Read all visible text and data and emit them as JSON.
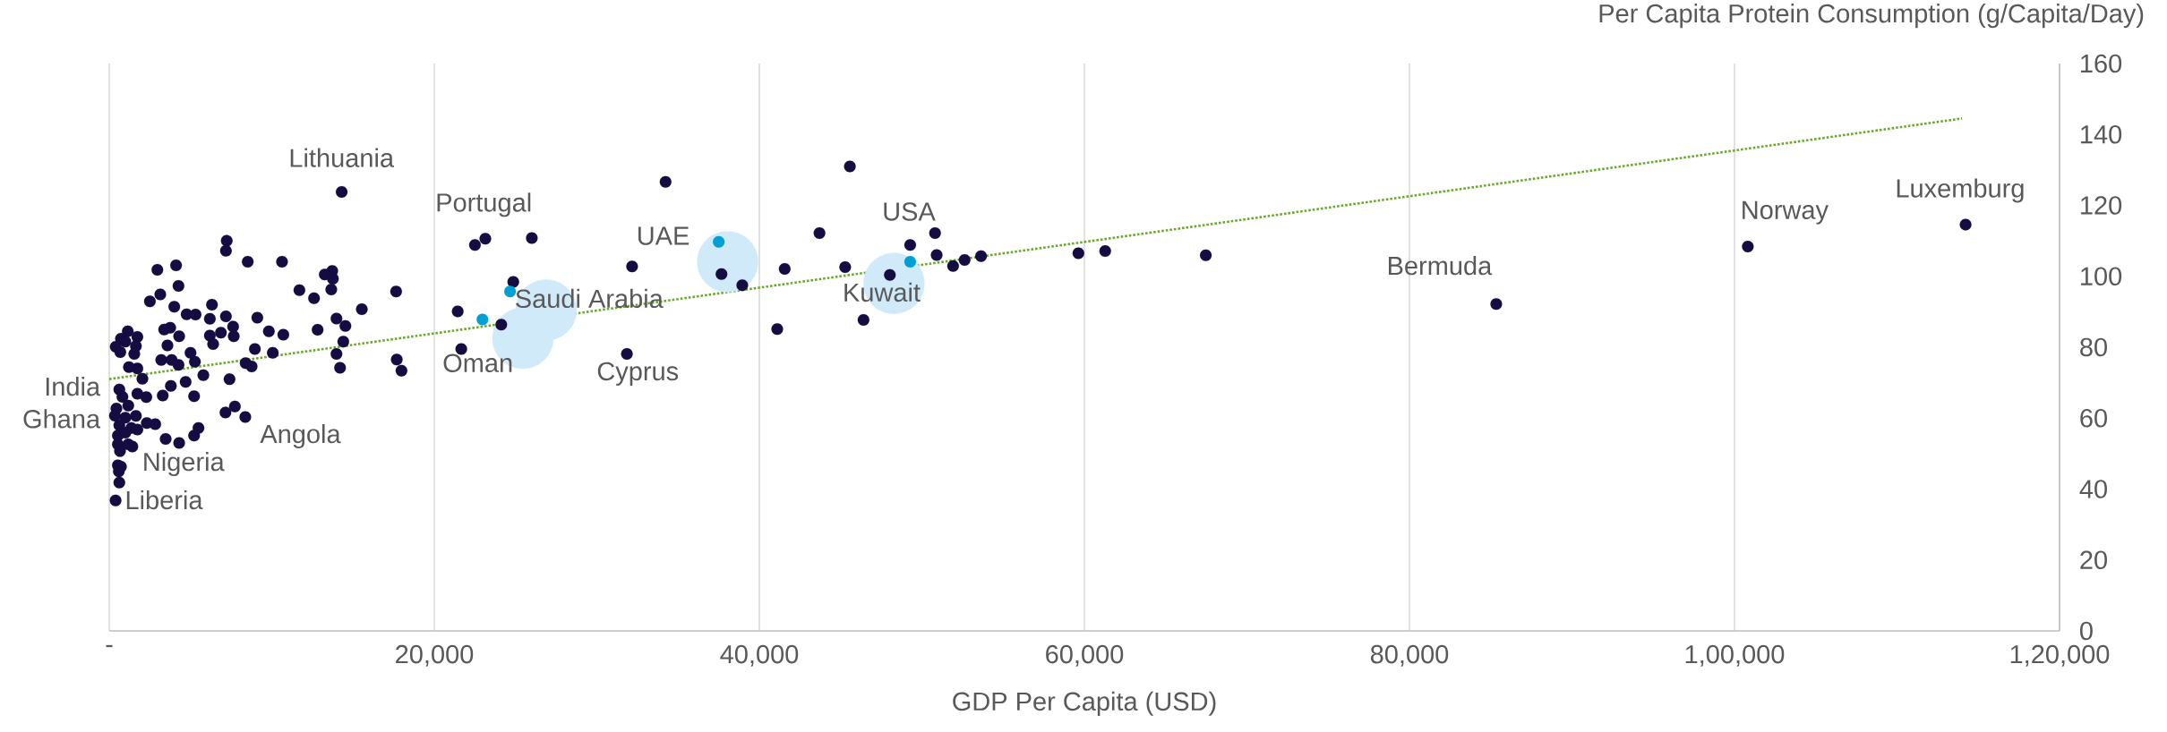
{
  "chart_data": {
    "type": "scatter",
    "xlabel": "GDP Per Capita (USD)",
    "ylabel": "Per Capita Protein Consumption (g/Capita/Day)",
    "xlim": [
      0,
      120000
    ],
    "ylim": [
      0,
      160
    ],
    "xticks": [
      {
        "value": 0,
        "label": "-"
      },
      {
        "value": 20000,
        "label": "20,000"
      },
      {
        "value": 40000,
        "label": "40,000"
      },
      {
        "value": 60000,
        "label": "60,000"
      },
      {
        "value": 80000,
        "label": "80,000"
      },
      {
        "value": 100000,
        "label": "1,00,000"
      },
      {
        "value": 120000,
        "label": "1,20,000"
      }
    ],
    "yticks": [
      0,
      20,
      40,
      60,
      80,
      100,
      120,
      140,
      160
    ],
    "grid": "x",
    "series": [
      {
        "type": "bubble",
        "color": "#d0eaf9",
        "x": [
          26880,
          25450,
          38050,
          48280
        ],
        "values": [
          90.5,
          82.5,
          104.1,
          98.0
        ],
        "sizes": [
          1,
          1,
          1,
          1
        ]
      },
      {
        "color": "#150d42",
        "x": [
          14300,
          7230,
          7180,
          8520,
          10630,
          2960,
          4110,
          4260,
          3140,
          2500,
          4000,
          4760,
          5310,
          6320,
          6190,
          7180,
          7620,
          6870,
          7660,
          6190,
          6390,
          9110,
          9820,
          10710,
          8960,
          10060,
          11700,
          12600,
          13260,
          13720,
          13760,
          13660,
          15540,
          17650,
          13980,
          14530,
          12820,
          14400,
          13980,
          14200,
          17690,
          17980,
          8390,
          8760,
          7400,
          5790,
          5270,
          5000,
          4300,
          3580,
          3380,
          3750,
          3200,
          3840,
          4260,
          4700,
          3790,
          3290,
          5220,
          7150,
          7730,
          8370,
          5220,
          5490,
          4300,
          3470,
          2830,
          2310,
          2280,
          2040,
          1730,
          1210,
          1140,
          1730,
          720,
          400,
          680,
          1540,
          1640,
          990,
          620,
          810,
          1730,
          440,
          1170,
          350,
          990,
          1640,
          620,
          1360,
          1730,
          530,
          990,
          530,
          1420,
          660,
          530,
          720,
          590,
          620,
          390,
          1170,
          34230,
          45570,
          22500,
          23140,
          26000,
          32170,
          24860,
          21440,
          24120,
          21660,
          31850,
          37670,
          38950,
          43700,
          41560,
          41100,
          45280,
          46410,
          48030,
          49280,
          50810,
          50910,
          51920,
          52630,
          53640,
          59630,
          61280,
          67470,
          85340,
          100820,
          114220
        ],
        "values": [
          123.8,
          110.0,
          107.2,
          104.1,
          104.1,
          101.8,
          103.1,
          97.3,
          94.9,
          92.9,
          91.4,
          89.3,
          89.2,
          92.0,
          88.0,
          88.7,
          85.8,
          84.1,
          83.1,
          83.3,
          80.9,
          88.3,
          84.5,
          83.5,
          79.5,
          78.4,
          96.1,
          93.8,
          100.5,
          101.5,
          99.3,
          96.3,
          90.7,
          95.7,
          88.1,
          86.0,
          84.9,
          81.6,
          78.1,
          74.2,
          76.5,
          73.4,
          75.5,
          74.6,
          71.0,
          72.1,
          75.9,
          78.4,
          83.1,
          80.5,
          85.0,
          85.5,
          76.4,
          76.4,
          75.0,
          70.2,
          69.1,
          66.4,
          66.2,
          61.6,
          63.3,
          60.3,
          55.1,
          57.2,
          53.0,
          54.1,
          58.3,
          58.6,
          65.9,
          71.1,
          74.0,
          74.4,
          84.5,
          82.9,
          82.4,
          80.1,
          78.6,
          78.1,
          80.3,
          81.6,
          68.1,
          66.0,
          66.9,
          62.7,
          63.5,
          60.7,
          60.1,
          60.6,
          58.0,
          57.2,
          56.8,
          55.1,
          55.9,
          52.6,
          52.0,
          50.7,
          46.7,
          46.3,
          45.0,
          41.8,
          36.8,
          52.6,
          126.6,
          131.0,
          108.8,
          110.6,
          110.8,
          102.8,
          98.4,
          90.1,
          86.4,
          79.5,
          78.1,
          100.6,
          97.5,
          112.2,
          102.1,
          85.1,
          102.6,
          87.7,
          100.4,
          108.8,
          112.2,
          106.0,
          102.9,
          104.6,
          105.7,
          106.5,
          107.1,
          105.9,
          92.2,
          108.4,
          114.6
        ]
      },
      {
        "color": "#00a0d2",
        "x": [
          24660,
          22960,
          37500,
          49280
        ],
        "values": [
          95.7,
          87.8,
          109.7,
          104.1
        ]
      },
      {
        "type": "line",
        "color": "#6aaa2a",
        "line_style": "dotted",
        "x": [
          0,
          114000
        ],
        "values": [
          71.0,
          144.5
        ]
      }
    ],
    "annotations": [
      "Lithuania",
      "Portugal",
      "UAE",
      "USA",
      "Luxemburg",
      "Norway",
      "Bermuda",
      "Saudi Arabia",
      "Oman",
      "Kuwait",
      "Cyprus",
      "India",
      "Ghana",
      "Nigeria",
      "Angola",
      "Liberia"
    ]
  }
}
